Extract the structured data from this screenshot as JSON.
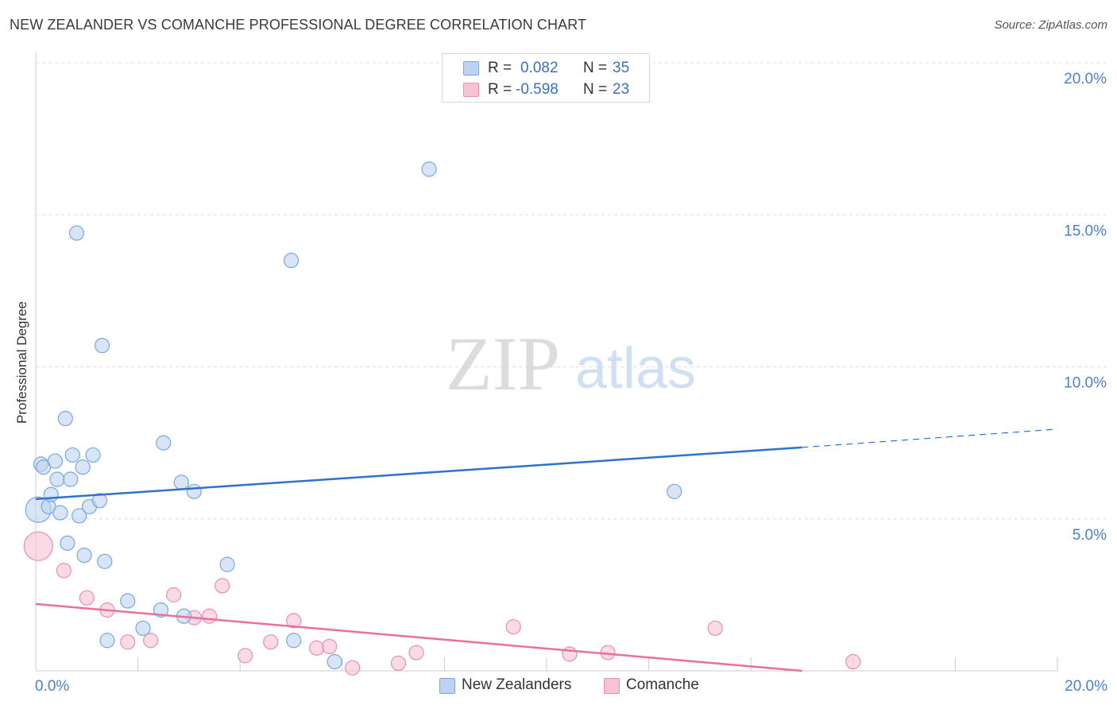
{
  "title": "NEW ZEALANDER VS COMANCHE PROFESSIONAL DEGREE CORRELATION CHART",
  "source": "Source: ZipAtlas.com",
  "watermark": {
    "zip": "ZIP",
    "atlas": "atlas"
  },
  "legend": {
    "rows": [
      {
        "r_label": "R =",
        "r_value": "0.082",
        "n_label": "N =",
        "n_value": "35"
      },
      {
        "r_label": "R =",
        "r_value": "-0.598",
        "n_label": "N =",
        "n_value": "23"
      }
    ]
  },
  "bottom_legend": [
    {
      "label": "New Zealanders"
    },
    {
      "label": "Comanche"
    }
  ],
  "colors": {
    "blue_fill": "#bcd3f2",
    "blue_stroke": "#7aa6de",
    "blue_line": "#2f72cc",
    "pink_fill": "#f7c2d3",
    "pink_stroke": "#ea8fae",
    "pink_line": "#e8709a",
    "axis_text": "#4a7fd0",
    "grid": "#dcdcdc"
  },
  "chart_data": {
    "type": "scatter",
    "title": "NEW ZEALANDER VS COMANCHE PROFESSIONAL DEGREE CORRELATION CHART",
    "xlabel": "",
    "ylabel": "Professional Degree",
    "xlim": [
      0,
      20
    ],
    "ylim": [
      0,
      20
    ],
    "x_tick_labels": [
      "0.0%",
      "20.0%"
    ],
    "y_ticks": [
      5,
      10,
      15,
      20
    ],
    "y_tick_labels": [
      "5.0%",
      "10.0%",
      "15.0%",
      "20.0%"
    ],
    "series": [
      {
        "name": "New Zealanders",
        "r": 0.082,
        "n": 35,
        "points": [
          {
            "x": 0.05,
            "y": 5.3,
            "s": 16
          },
          {
            "x": 0.1,
            "y": 6.8,
            "s": 9
          },
          {
            "x": 0.15,
            "y": 6.7,
            "s": 9
          },
          {
            "x": 0.25,
            "y": 5.4,
            "s": 9
          },
          {
            "x": 0.3,
            "y": 5.8,
            "s": 9
          },
          {
            "x": 0.38,
            "y": 6.9,
            "s": 9
          },
          {
            "x": 0.42,
            "y": 6.3,
            "s": 9
          },
          {
            "x": 0.48,
            "y": 5.2,
            "s": 9
          },
          {
            "x": 0.58,
            "y": 8.3,
            "s": 9
          },
          {
            "x": 0.62,
            "y": 4.2,
            "s": 9
          },
          {
            "x": 0.68,
            "y": 6.3,
            "s": 9
          },
          {
            "x": 0.72,
            "y": 7.1,
            "s": 9
          },
          {
            "x": 0.8,
            "y": 14.4,
            "s": 9
          },
          {
            "x": 0.85,
            "y": 5.1,
            "s": 9
          },
          {
            "x": 0.92,
            "y": 6.7,
            "s": 9
          },
          {
            "x": 0.95,
            "y": 3.8,
            "s": 9
          },
          {
            "x": 1.05,
            "y": 5.4,
            "s": 9
          },
          {
            "x": 1.12,
            "y": 7.1,
            "s": 9
          },
          {
            "x": 1.25,
            "y": 5.6,
            "s": 9
          },
          {
            "x": 1.3,
            "y": 10.7,
            "s": 9
          },
          {
            "x": 1.35,
            "y": 3.6,
            "s": 9
          },
          {
            "x": 1.4,
            "y": 1.0,
            "s": 9
          },
          {
            "x": 1.8,
            "y": 2.3,
            "s": 9
          },
          {
            "x": 2.1,
            "y": 1.4,
            "s": 9
          },
          {
            "x": 2.45,
            "y": 2.0,
            "s": 9
          },
          {
            "x": 2.5,
            "y": 7.5,
            "s": 9
          },
          {
            "x": 2.85,
            "y": 6.2,
            "s": 9
          },
          {
            "x": 2.9,
            "y": 1.8,
            "s": 9
          },
          {
            "x": 3.1,
            "y": 5.9,
            "s": 9
          },
          {
            "x": 3.75,
            "y": 3.5,
            "s": 9
          },
          {
            "x": 5.0,
            "y": 13.5,
            "s": 9
          },
          {
            "x": 5.05,
            "y": 1.0,
            "s": 9
          },
          {
            "x": 5.85,
            "y": 0.3,
            "s": 9
          },
          {
            "x": 7.7,
            "y": 16.5,
            "s": 9
          },
          {
            "x": 12.5,
            "y": 5.9,
            "s": 9
          }
        ],
        "trend": {
          "x0": 0,
          "y0": 5.65,
          "x1": 15.0,
          "y1": 7.35,
          "dashed_to_x": 20,
          "dashed_to_y": 7.95
        }
      },
      {
        "name": "Comanche",
        "r": -0.598,
        "n": 23,
        "points": [
          {
            "x": 0.05,
            "y": 4.1,
            "s": 18
          },
          {
            "x": 0.55,
            "y": 3.3,
            "s": 9
          },
          {
            "x": 1.0,
            "y": 2.4,
            "s": 9
          },
          {
            "x": 1.4,
            "y": 2.0,
            "s": 9
          },
          {
            "x": 1.8,
            "y": 0.95,
            "s": 9
          },
          {
            "x": 2.25,
            "y": 1.0,
            "s": 9
          },
          {
            "x": 2.7,
            "y": 2.5,
            "s": 9
          },
          {
            "x": 3.1,
            "y": 1.75,
            "s": 9
          },
          {
            "x": 3.4,
            "y": 1.8,
            "s": 9
          },
          {
            "x": 3.65,
            "y": 2.8,
            "s": 9
          },
          {
            "x": 4.1,
            "y": 0.5,
            "s": 9
          },
          {
            "x": 4.6,
            "y": 0.95,
            "s": 9
          },
          {
            "x": 5.05,
            "y": 1.65,
            "s": 9
          },
          {
            "x": 5.5,
            "y": 0.75,
            "s": 9
          },
          {
            "x": 5.75,
            "y": 0.8,
            "s": 9
          },
          {
            "x": 6.2,
            "y": 0.1,
            "s": 9
          },
          {
            "x": 7.1,
            "y": 0.25,
            "s": 9
          },
          {
            "x": 7.45,
            "y": 0.6,
            "s": 9
          },
          {
            "x": 9.35,
            "y": 1.45,
            "s": 9
          },
          {
            "x": 10.45,
            "y": 0.55,
            "s": 9
          },
          {
            "x": 11.2,
            "y": 0.6,
            "s": 9
          },
          {
            "x": 13.3,
            "y": 1.4,
            "s": 9
          },
          {
            "x": 16.0,
            "y": 0.3,
            "s": 9
          }
        ],
        "trend": {
          "x0": 0,
          "y0": 2.2,
          "x1": 15.0,
          "y1": 0.0
        }
      }
    ]
  }
}
